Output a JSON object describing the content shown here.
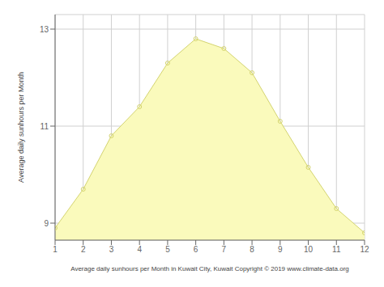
{
  "chart_data": {
    "type": "area",
    "x": [
      1,
      2,
      3,
      4,
      5,
      6,
      7,
      8,
      9,
      10,
      11,
      12
    ],
    "series": [
      {
        "type": "area",
        "color": "#FAFABC",
        "values": [
          8.9,
          9.7,
          10.8,
          11.4,
          12.3,
          12.8,
          12.6,
          12.1,
          11.1,
          10.15,
          9.3,
          8.8
        ]
      },
      {
        "type": "line",
        "color": "#D4D470",
        "marker": "o",
        "values": [
          8.9,
          9.7,
          10.8,
          11.4,
          12.3,
          12.8,
          12.6,
          12.1,
          11.1,
          10.15,
          9.3,
          8.8
        ]
      }
    ],
    "xlabel": "Average daily sunhours per Month in Kuwait City, Kuwait Copyright © 2019 www.climate-data.org",
    "ylabel": "Average daily sunhours per Month",
    "xlim": [
      1,
      12
    ],
    "xticks": [
      1,
      2,
      3,
      4,
      5,
      6,
      7,
      8,
      9,
      10,
      11,
      12
    ],
    "ylim": [
      8.65,
      13.3
    ],
    "yticks": [
      9,
      11,
      13
    ],
    "grid": true
  }
}
